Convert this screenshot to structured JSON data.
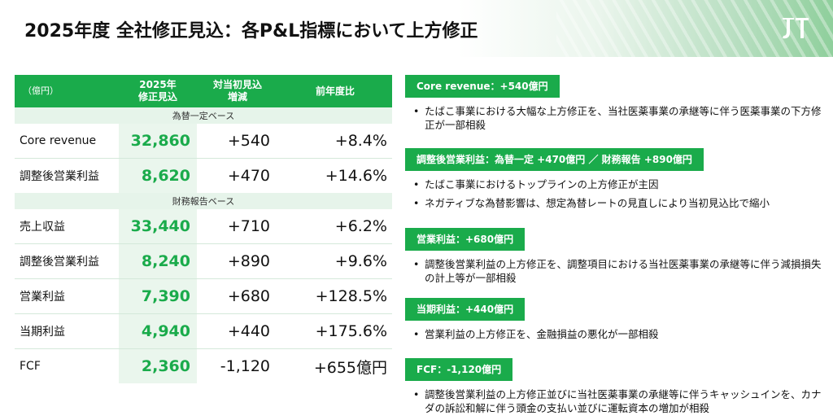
{
  "header": {
    "title": "2025年度 全社修正見込：各P&L指標において上方修正",
    "logo_text": "JT"
  },
  "table": {
    "headers": [
      "（億円）",
      "2025年\n修正見込",
      "対当初見込\n増減",
      "前年度比"
    ],
    "sections": [
      {
        "label": "為替一定ベース",
        "rows": [
          {
            "label": "Core revenue",
            "value": "32,860",
            "change": "+540",
            "yoy": "+8.4%"
          },
          {
            "label": "調整後営業利益",
            "value": "8,620",
            "change": "+470",
            "yoy": "+14.6%"
          }
        ]
      },
      {
        "label": "財務報告ベース",
        "rows": [
          {
            "label": "売上収益",
            "value": "33,440",
            "change": "+710",
            "yoy": "+6.2%"
          },
          {
            "label": "調整後営業利益",
            "value": "8,240",
            "change": "+890",
            "yoy": "+9.6%"
          },
          {
            "label": "営業利益",
            "value": "7,390",
            "change": "+680",
            "yoy": "+128.5%"
          },
          {
            "label": "当期利益",
            "value": "4,940",
            "change": "+440",
            "yoy": "+175.6%"
          },
          {
            "label": "FCF",
            "value": "2,360",
            "change": "-1,120",
            "yoy": "+655億円"
          }
        ]
      }
    ]
  },
  "notes": [
    {
      "badge": "Core revenue：+540億円",
      "bullets": [
        "たばこ事業における大幅な上方修正を、当社医薬事業の承継等に伴う医薬事業の下方修正が一部相殺"
      ]
    },
    {
      "badge": "調整後営業利益：為替一定 +470億円 ／ 財務報告 +890億円",
      "bullets": [
        "たばこ事業におけるトップラインの上方修正が主因",
        "ネガティブな為替影響は、想定為替レートの見直しにより当初見込比で縮小"
      ]
    },
    {
      "badge": "営業利益：+680億円",
      "bullets": [
        "調整後営業利益の上方修正を、調整項目における当社医薬事業の承継等に伴う減損損失の計上等が一部相殺"
      ]
    },
    {
      "badge": "当期利益：+440億円",
      "bullets": [
        "営業利益の上方修正を、金融損益の悪化が一部相殺"
      ]
    },
    {
      "badge": "FCF：-1,120億円",
      "bullets": [
        "調整後営業利益の上方修正並びに当社医薬事業の承継等に伴うキャッシュインを、カナダの訴訟和解に伴う頭金の支払い並びに運転資本の増加が相殺"
      ]
    }
  ],
  "colors": {
    "accent": "#1aab4b",
    "light_accent": "#eaf6ed",
    "section_bg": "#e6f4ea"
  }
}
